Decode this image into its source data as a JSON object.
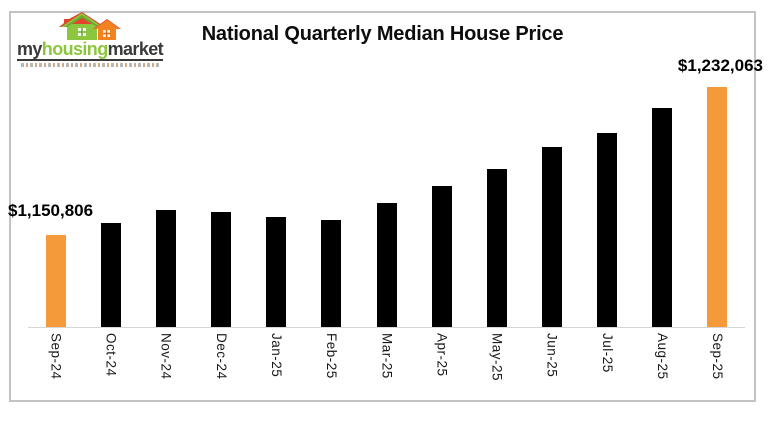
{
  "brand": {
    "name_part1": "my",
    "name_part2": "housing",
    "name_part3": "market",
    "green": "#8cc63f",
    "orange": "#f58220",
    "dark": "#3a3a3a"
  },
  "chart_data": {
    "type": "bar",
    "title": "National Quarterly Median House Price",
    "categories": [
      "Sep-24",
      "Oct-24",
      "Nov-24",
      "Dec-24",
      "Jan-25",
      "Feb-25",
      "Mar-25",
      "Apr-25",
      "May-25",
      "Jun-25",
      "Jul-25",
      "Aug-25",
      "Sep-25"
    ],
    "values": [
      1150806,
      1157000,
      1164000,
      1163400,
      1160200,
      1158600,
      1167900,
      1177200,
      1186500,
      1199100,
      1206800,
      1220400,
      1232063
    ],
    "first_label": "$1,150,806",
    "last_label": "$1,232,063",
    "xlabel": "",
    "ylabel": "",
    "ylim": [
      1100000,
      1240000
    ],
    "grid": false,
    "legend": "none",
    "x_tick_rotation_deg": 90,
    "bar_color": "#000000",
    "highlight_color": "#f49a3b",
    "highlight_indices": [
      0,
      12
    ],
    "axis_line_color": "#d6d6d6"
  }
}
